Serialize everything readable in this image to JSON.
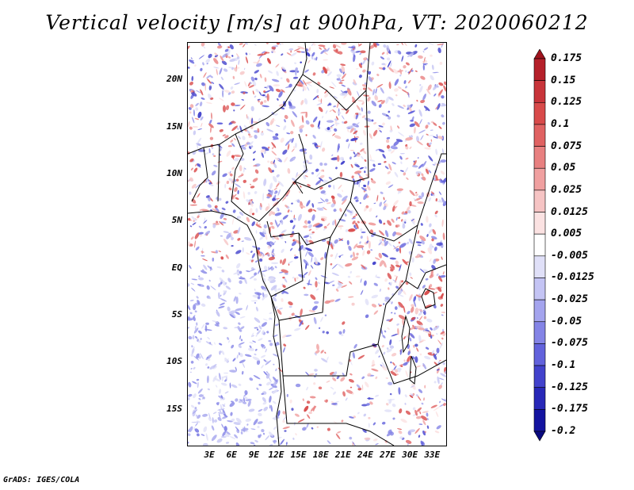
{
  "title": "Vertical velocity [m/s] at 900hPa, VT: 2020060212",
  "footer": "GrADS: IGES/COLA",
  "map": {
    "lon_range": [
      0,
      35
    ],
    "lat_range": [
      -19,
      24
    ],
    "lat_ticks": [
      {
        "label": "20N",
        "lat": 20
      },
      {
        "label": "15N",
        "lat": 15
      },
      {
        "label": "10N",
        "lat": 10
      },
      {
        "label": "5N",
        "lat": 5
      },
      {
        "label": "EQ",
        "lat": 0
      },
      {
        "label": "5S",
        "lat": -5
      },
      {
        "label": "10S",
        "lat": -10
      },
      {
        "label": "15S",
        "lat": -15
      }
    ],
    "lon_ticks": [
      {
        "label": "3E",
        "lon": 3
      },
      {
        "label": "6E",
        "lon": 6
      },
      {
        "label": "9E",
        "lon": 9
      },
      {
        "label": "12E",
        "lon": 12
      },
      {
        "label": "15E",
        "lon": 15
      },
      {
        "label": "18E",
        "lon": 18
      },
      {
        "label": "21E",
        "lon": 21
      },
      {
        "label": "24E",
        "lon": 24
      },
      {
        "label": "27E",
        "lon": 27
      },
      {
        "label": "30E",
        "lon": 30
      },
      {
        "label": "33E",
        "lon": 33
      }
    ]
  },
  "colorbar": {
    "labels": [
      "0.175",
      "0.15",
      "0.125",
      "0.1",
      "0.075",
      "0.05",
      "0.025",
      "0.0125",
      "0.005",
      "-0.005",
      "-0.0125",
      "-0.025",
      "-0.05",
      "-0.075",
      "-0.1",
      "-0.125",
      "-0.175",
      "-0.2"
    ],
    "colors": [
      "#a0141e",
      "#b5202a",
      "#c8343a",
      "#d84a4a",
      "#e06262",
      "#e88080",
      "#f0a0a0",
      "#f6c4c4",
      "#fbe2e2",
      "#ffffff",
      "#e0e0f8",
      "#c4c4f4",
      "#a4a4ee",
      "#8484e6",
      "#6262dc",
      "#4242cc",
      "#2828b8",
      "#1414a0",
      "#0a0a80"
    ]
  }
}
